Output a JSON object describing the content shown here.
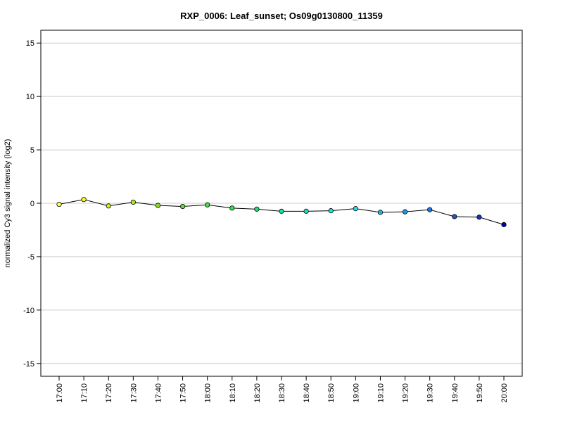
{
  "chart_data": {
    "type": "line",
    "title": "RXP_0006: Leaf_sunset; Os09g0130800_11359",
    "xlabel": "",
    "ylabel": "normalized Cy3 signal intensity (log2)",
    "ylim": [
      -16.2,
      16.2
    ],
    "yticks": [
      -15,
      -10,
      -5,
      0,
      5,
      10,
      15
    ],
    "ytick_labels": [
      "-15",
      "-10",
      "-5",
      "0",
      "5",
      "10",
      "15"
    ],
    "grid": "horizontal",
    "categories": [
      "17:00",
      "17:10",
      "17:20",
      "17:30",
      "17:40",
      "17:50",
      "18:00",
      "18:10",
      "18:20",
      "18:30",
      "18:40",
      "18:50",
      "19:00",
      "19:10",
      "19:20",
      "19:30",
      "19:40",
      "19:50",
      "20:00"
    ],
    "series": [
      {
        "values": [
          -0.1,
          0.35,
          -0.25,
          0.1,
          -0.2,
          -0.3,
          -0.15,
          -0.45,
          -0.55,
          -0.75,
          -0.75,
          -0.7,
          -0.5,
          -0.85,
          -0.8,
          -0.6,
          -1.25,
          -1.3,
          -2.0
        ],
        "line_color": "#000000",
        "point_colors": [
          "#ffff66",
          "#ffff22",
          "#ccee22",
          "#aaee22",
          "#88dd22",
          "#66dd33",
          "#44dd44",
          "#33dd55",
          "#22dd77",
          "#22dd99",
          "#22ddbb",
          "#22dddd",
          "#22ddee",
          "#22bbee",
          "#2299ee",
          "#2277dd",
          "#2255cc",
          "#1133bb",
          "#0000aa"
        ]
      }
    ]
  }
}
